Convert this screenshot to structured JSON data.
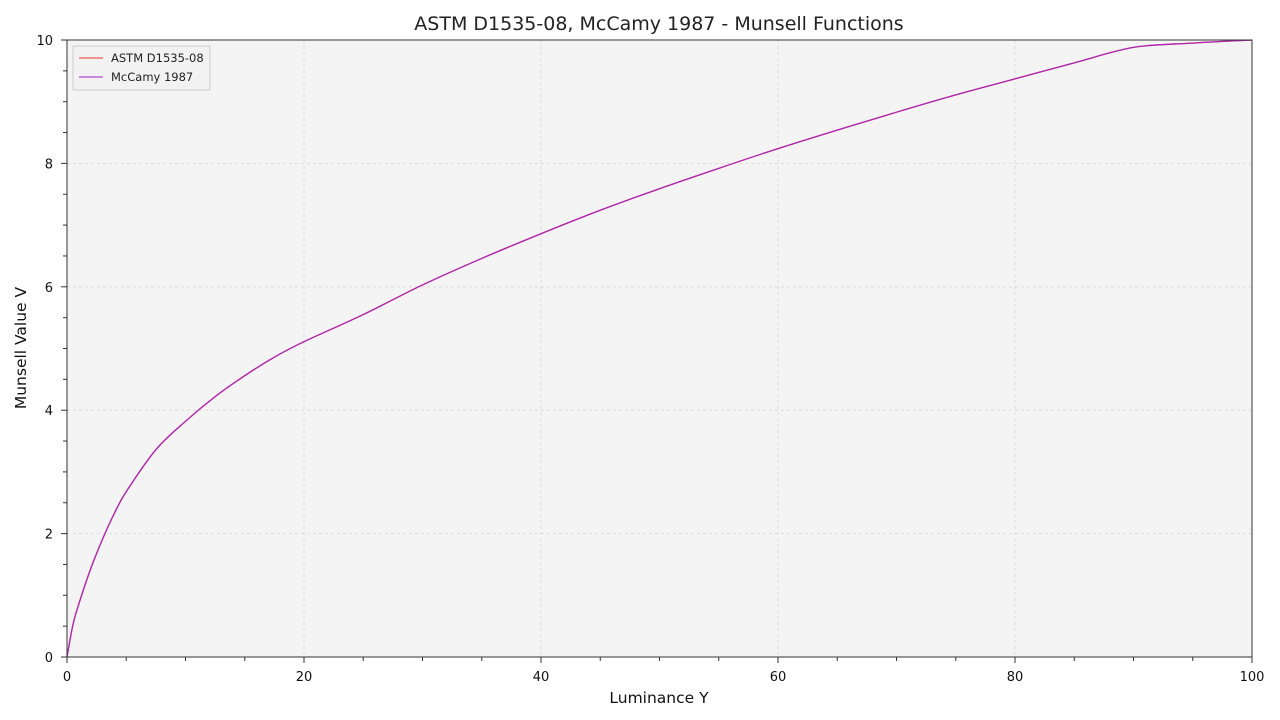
{
  "chart_data": {
    "type": "line",
    "title": "ASTM D1535-08, McCamy 1987 - Munsell Functions",
    "xlabel": "Luminance Y",
    "ylabel": "Munsell Value V",
    "xlim": [
      0,
      100
    ],
    "ylim": [
      0,
      10
    ],
    "xticks": [
      0,
      20,
      40,
      60,
      80,
      100
    ],
    "yticks": [
      0,
      2,
      4,
      6,
      8,
      10
    ],
    "xtick_labels": [
      "0",
      "20",
      "40",
      "60",
      "80",
      "100"
    ],
    "ytick_labels": [
      "0",
      "2",
      "4",
      "6",
      "8",
      "10"
    ],
    "x_minor_step": 5,
    "y_minor_step": 0.5,
    "grid": true,
    "legend_position": "top-left",
    "background_color": "#f4f4f4",
    "x": [
      0,
      0.5,
      1,
      2,
      3,
      4,
      5,
      7.5,
      10,
      12.5,
      15,
      17.5,
      20,
      25,
      30,
      35,
      40,
      45,
      50,
      55,
      60,
      65,
      70,
      75,
      80,
      85,
      90,
      95,
      100
    ],
    "series": [
      {
        "name": "ASTM D1535-08",
        "color": "#e8312a",
        "values": [
          0,
          0.52,
          0.86,
          1.43,
          1.91,
          2.33,
          2.68,
          3.36,
          3.82,
          4.22,
          4.56,
          4.86,
          5.11,
          5.55,
          6.03,
          6.46,
          6.86,
          7.24,
          7.59,
          7.92,
          8.24,
          8.54,
          8.83,
          9.11,
          9.37,
          9.63,
          9.88,
          9.95,
          10.0
        ]
      },
      {
        "name": "McCamy 1987",
        "color": "#a21ec9",
        "values": [
          0,
          0.52,
          0.86,
          1.43,
          1.91,
          2.33,
          2.68,
          3.36,
          3.82,
          4.22,
          4.56,
          4.86,
          5.11,
          5.55,
          6.03,
          6.46,
          6.86,
          7.24,
          7.59,
          7.92,
          8.24,
          8.54,
          8.83,
          9.11,
          9.37,
          9.63,
          9.88,
          9.95,
          10.0
        ]
      }
    ]
  }
}
